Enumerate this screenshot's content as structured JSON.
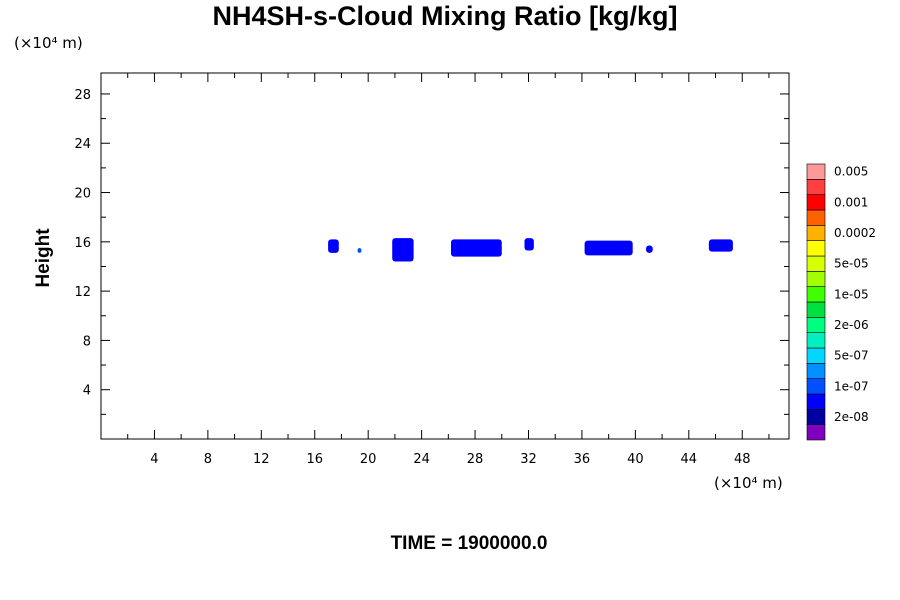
{
  "chart_data": {
    "type": "heatmap",
    "title": "NH4SH-s-Cloud Mixing Ratio [kg/kg]",
    "ylabel": "Height",
    "xlabel": "",
    "x_unit": "(×10⁴ m)",
    "y_unit": "(×10⁴ m)",
    "xlim": [
      0,
      51.5
    ],
    "ylim": [
      0,
      29.7
    ],
    "x_ticks": [
      4,
      8,
      12,
      16,
      20,
      24,
      28,
      32,
      36,
      40,
      44,
      48
    ],
    "x_tick_labels": [
      "4",
      "8",
      "12",
      "16",
      "20",
      "24",
      "28",
      "32",
      "36",
      "40",
      "44",
      "48"
    ],
    "y_ticks": [
      4,
      8,
      12,
      16,
      20,
      24,
      28
    ],
    "y_tick_labels": [
      "4",
      "8",
      "12",
      "16",
      "20",
      "24",
      "28"
    ],
    "time_label": "TIME = 1900000.0",
    "colorbar": {
      "colors": [
        "#7f00bf",
        "#0000a0",
        "#0000ff",
        "#0050ff",
        "#0090ff",
        "#00d8ff",
        "#00f0c0",
        "#00ff80",
        "#00e040",
        "#40ff00",
        "#a0ff00",
        "#d8ff00",
        "#ffff00",
        "#ffb000",
        "#ff6000",
        "#ff0000",
        "#ff4040",
        "#ff9999"
      ],
      "labels": [
        "2e-08",
        "1e-07",
        "5e-07",
        "2e-06",
        "1e-05",
        "5e-05",
        "0.0002",
        "0.001",
        "0.005"
      ]
    },
    "cloud_patches": [
      {
        "x": [
          17.0,
          17.8
        ],
        "y": [
          15.1,
          16.2
        ],
        "color": "#0000ff"
      },
      {
        "x": [
          19.2,
          19.5
        ],
        "y": [
          15.1,
          15.5
        ],
        "color": "#0050ff"
      },
      {
        "x": [
          21.8,
          23.4
        ],
        "y": [
          14.4,
          16.3
        ],
        "color": "#0000ff"
      },
      {
        "x": [
          26.2,
          30.0
        ],
        "y": [
          14.8,
          16.2
        ],
        "color": "#0000ff"
      },
      {
        "x": [
          31.7,
          32.4
        ],
        "y": [
          15.3,
          16.3
        ],
        "color": "#0000ff"
      },
      {
        "x": [
          36.2,
          39.8
        ],
        "y": [
          14.9,
          16.1
        ],
        "color": "#0000ff"
      },
      {
        "x": [
          40.8,
          41.3
        ],
        "y": [
          15.1,
          15.7
        ],
        "color": "#0000ff"
      },
      {
        "x": [
          45.5,
          47.3
        ],
        "y": [
          15.2,
          16.2
        ],
        "color": "#0000ff"
      }
    ]
  }
}
